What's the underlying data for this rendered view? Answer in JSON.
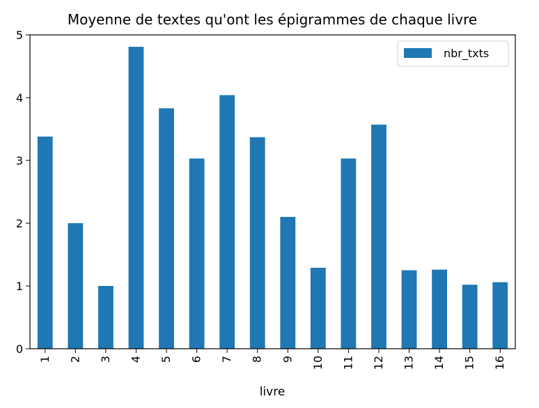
{
  "chart_data": {
    "type": "bar",
    "title": "Moyenne de textes qu'ont les épigrammes de chaque livre",
    "xlabel": "livre",
    "ylabel": "",
    "categories": [
      "1",
      "2",
      "3",
      "4",
      "5",
      "6",
      "7",
      "8",
      "9",
      "10",
      "11",
      "12",
      "13",
      "14",
      "15",
      "16"
    ],
    "series": [
      {
        "name": "nbr_txts",
        "color": "#1f77b4",
        "values": [
          3.38,
          2.0,
          1.0,
          4.81,
          3.83,
          3.03,
          4.04,
          3.37,
          2.1,
          1.29,
          3.03,
          3.57,
          1.25,
          1.26,
          1.02,
          1.06
        ]
      }
    ],
    "ylim": [
      0,
      5
    ],
    "yticks": [
      "0",
      "1",
      "2",
      "3",
      "4",
      "5"
    ],
    "grid": false,
    "legend_position": "top-right",
    "x_tick_rotation": "vertical"
  }
}
